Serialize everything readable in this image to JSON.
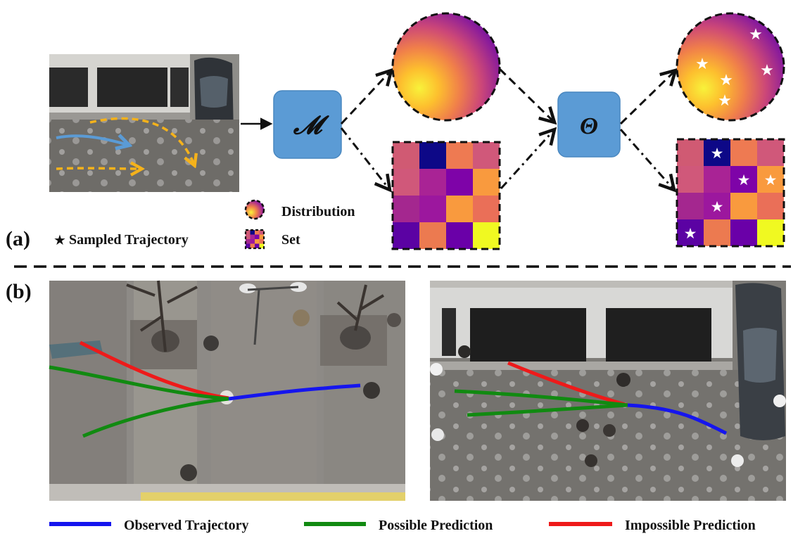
{
  "panel_a": {
    "label": "(a)",
    "model_symbol": "𝓜",
    "theta_symbol": "Θ",
    "legend": {
      "sampled": "Sampled Trajectory",
      "distribution": "Distribution",
      "set": "Set"
    },
    "star_glyph": "★"
  },
  "panel_b": {
    "label": "(b)"
  },
  "legend": {
    "observed": "Observed Trajectory",
    "possible": "Possible Prediction",
    "impossible": "Impossible Prediction"
  },
  "colors": {
    "box_fill": "#5b9bd5",
    "observed": "#1515ee",
    "possible": "#118a11",
    "impossible": "#ee1a1a",
    "traj_blue": "#5b9bd5",
    "traj_orange": "#f5b21b"
  },
  "set_grid": [
    [
      "#d05a73",
      "#0d0887",
      "#ee7a52",
      "#d0587a"
    ],
    [
      "#d0587a",
      "#a92395",
      "#7e03a8",
      "#f99a3e"
    ],
    [
      "#a4278f",
      "#9c179e",
      "#f99a3e",
      "#ea6f58"
    ],
    [
      "#5b02a3",
      "#ec7a50",
      "#6a00a8",
      "#f0f921"
    ]
  ],
  "set_stars": [
    [
      0,
      1
    ],
    [
      1,
      2
    ],
    [
      1,
      3
    ],
    [
      2,
      1
    ],
    [
      3,
      0
    ]
  ]
}
